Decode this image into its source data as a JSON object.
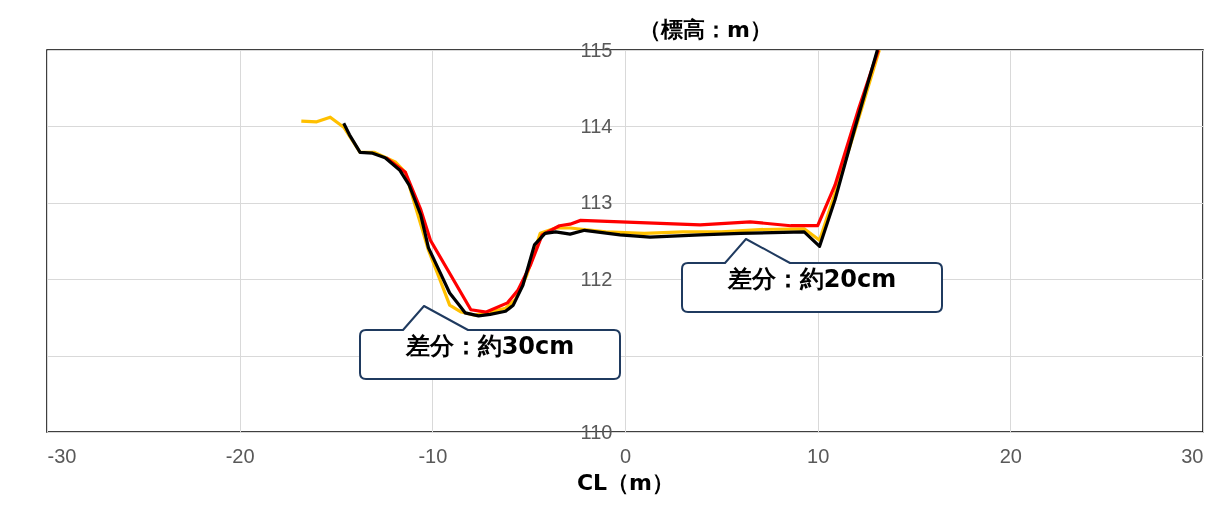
{
  "chart_data": {
    "type": "line",
    "ylabel": "（標高：m）",
    "xlabel": "CL（m）",
    "xlim": [
      -30,
      30
    ],
    "ylim": [
      110,
      115
    ],
    "xticks": [
      -30,
      -20,
      -10,
      0,
      10,
      20,
      30
    ],
    "yticks": [
      110,
      {
        "value": 111,
        "label": null
      },
      112,
      113,
      114,
      115
    ],
    "grid": true,
    "series": [
      {
        "color": "#ffc000",
        "x": [
          -16.8,
          -16.0,
          -15.3,
          -14.6,
          -13.75,
          -13.0,
          -11.9,
          -11.4,
          -10.9,
          -10.2,
          -9.6,
          -9.1,
          -8.5,
          -7.8,
          -7.0,
          -6.2,
          -5.7,
          -5.1,
          -4.4,
          -3.6,
          -2.85,
          -1.0,
          1.0,
          3.0,
          5.0,
          7.0,
          9.3,
          10.1,
          11.0,
          12.0,
          13.2
        ],
        "values": [
          114.07,
          114.06,
          114.12,
          113.99,
          113.66,
          113.66,
          113.53,
          113.4,
          112.97,
          112.38,
          111.99,
          111.66,
          111.57,
          111.53,
          111.57,
          111.62,
          111.73,
          112.05,
          112.6,
          112.67,
          112.67,
          112.62,
          112.6,
          112.62,
          112.62,
          112.65,
          112.66,
          112.51,
          113.2,
          114.0,
          115
        ]
      },
      {
        "color": "#ff0000",
        "x": [
          -12.4,
          -11.4,
          -10.6,
          -10.1,
          -9.2,
          -8.0,
          -7.2,
          -6.1,
          -5.55,
          -4.9,
          -4.3,
          -3.4,
          -2.85,
          -2.3,
          3.9,
          6.5,
          8.6,
          10.0,
          10.9,
          12.1,
          13.15
        ],
        "values": [
          113.59,
          113.4,
          112.91,
          112.51,
          112.12,
          111.6,
          111.57,
          111.69,
          111.86,
          112.19,
          112.58,
          112.7,
          112.72,
          112.77,
          112.71,
          112.75,
          112.7,
          112.7,
          113.23,
          114.21,
          115
        ]
      },
      {
        "color": "#000000",
        "x": [
          -14.6,
          -14.3,
          -13.75,
          -13.1,
          -12.45,
          -11.7,
          -11.2,
          -10.6,
          -10.2,
          -9.6,
          -9.1,
          -8.6,
          -8.3,
          -7.6,
          -7.0,
          -6.2,
          -5.8,
          -5.3,
          -4.7,
          -4.15,
          -3.6,
          -2.85,
          -2.1,
          -0.26,
          1.3,
          3.9,
          6.0,
          9.3,
          10.1,
          10.9,
          11.9,
          13.1
        ],
        "values": [
          114.04,
          113.89,
          113.66,
          113.65,
          113.59,
          113.43,
          113.23,
          112.84,
          112.41,
          112.09,
          111.82,
          111.66,
          111.56,
          111.52,
          111.54,
          111.58,
          111.66,
          111.92,
          112.45,
          112.6,
          112.62,
          112.59,
          112.64,
          112.58,
          112.55,
          112.58,
          112.6,
          112.62,
          112.43,
          113.04,
          113.95,
          115
        ]
      }
    ],
    "annotations": [
      "差分：約30cm",
      "差分：約20cm"
    ]
  }
}
